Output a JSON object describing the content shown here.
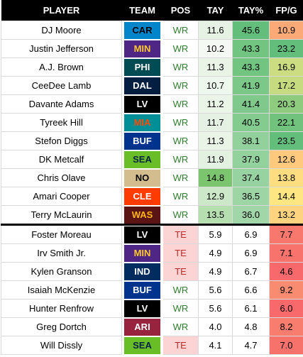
{
  "headers": [
    "PLAYER",
    "TEAM",
    "POS",
    "TAY",
    "TAY%",
    "FP/G"
  ],
  "colors": {
    "tay_ranks": [
      "#f7fbf6",
      "#d8ecd6",
      "#b6dfb0",
      "#98d28f",
      "#7cc56f"
    ],
    "tay_pct_top": "#63be7b",
    "fpg_high": "#63be7b",
    "fpg_mid": "#ffeb84",
    "fpg_low": "#f8696b"
  },
  "rows": [
    {
      "player": "DJ Moore",
      "team": "CAR",
      "team_bg": "#0085ca",
      "team_fg": "#000000",
      "pos": "WR",
      "tay": "11.6",
      "tay_bg": "#e6f3e4",
      "tay_pct": "45.6",
      "tay_pct_bg": "#63be7b",
      "fpg": "10.9",
      "fpg_bg": "#fbaa77"
    },
    {
      "player": "Justin Jefferson",
      "team": "MIN",
      "team_bg": "#4f2683",
      "team_fg": "#ffc62f",
      "pos": "WR",
      "tay": "10.2",
      "tay_bg": "#f4faf3",
      "tay_pct": "43.3",
      "tay_pct_bg": "#72c481",
      "fpg": "23.2",
      "fpg_bg": "#63be7b"
    },
    {
      "player": "A.J. Brown",
      "team": "PHI",
      "team_bg": "#004c54",
      "team_fg": "#ffffff",
      "pos": "WR",
      "tay": "11.3",
      "tay_bg": "#e9f4e7",
      "tay_pct": "43.3",
      "tay_pct_bg": "#72c481",
      "fpg": "16.9",
      "fpg_bg": "#cbdc81"
    },
    {
      "player": "CeeDee Lamb",
      "team": "DAL",
      "team_bg": "#041e42",
      "team_fg": "#ffffff",
      "pos": "WR",
      "tay": "10.7",
      "tay_bg": "#eef7ed",
      "tay_pct": "41.9",
      "tay_pct_bg": "#7bc888",
      "fpg": "17.2",
      "fpg_bg": "#c6db80"
    },
    {
      "player": "Davante Adams",
      "team": "LV",
      "team_bg": "#000000",
      "team_fg": "#ffffff",
      "pos": "WR",
      "tay": "11.2",
      "tay_bg": "#eaf5e8",
      "tay_pct": "41.4",
      "tay_pct_bg": "#7ec98b",
      "fpg": "20.3",
      "fpg_bg": "#8fcb7e"
    },
    {
      "player": "Tyreek Hill",
      "team": "MIA",
      "team_bg": "#008e97",
      "team_fg": "#fc4c02",
      "pos": "WR",
      "tay": "11.7",
      "tay_bg": "#e5f2e3",
      "tay_pct": "40.5",
      "tay_pct_bg": "#84cb90",
      "fpg": "22.1",
      "fpg_bg": "#70c27c"
    },
    {
      "player": "Stefon Diggs",
      "team": "BUF",
      "team_bg": "#00338d",
      "team_fg": "#ffffff",
      "pos": "WR",
      "tay": "11.3",
      "tay_bg": "#e9f4e7",
      "tay_pct": "38.1",
      "tay_pct_bg": "#93d19c",
      "fpg": "23.5",
      "fpg_bg": "#63be7b"
    },
    {
      "player": "DK Metcalf",
      "team": "SEA",
      "team_bg": "#69be28",
      "team_fg": "#002244",
      "pos": "WR",
      "tay": "11.9",
      "tay_bg": "#e3f1e1",
      "tay_pct": "37.9",
      "tay_pct_bg": "#94d29d",
      "fpg": "12.6",
      "fpg_bg": "#fec97d"
    },
    {
      "player": "Chris Olave",
      "team": "NO",
      "team_bg": "#d3bc8d",
      "team_fg": "#000000",
      "pos": "WR",
      "tay": "14.8",
      "tay_bg": "#7cc56f",
      "tay_pct": "37.4",
      "tay_pct_bg": "#97d3a0",
      "fpg": "13.8",
      "fpg_bg": "#fedd80"
    },
    {
      "player": "Amari Cooper",
      "team": "CLE",
      "team_bg": "#ff3c00",
      "team_fg": "#ffffff",
      "pos": "WR",
      "tay": "12.9",
      "tay_bg": "#cde8c9",
      "tay_pct": "36.5",
      "tay_pct_bg": "#9dd5a5",
      "fpg": "14.4",
      "fpg_bg": "#fee783"
    },
    {
      "player": "Terry McLaurin",
      "team": "WAS",
      "team_bg": "#5a1414",
      "team_fg": "#ffb612",
      "pos": "WR",
      "tay": "13.5",
      "tay_bg": "#b6dfb0",
      "tay_pct": "36.0",
      "tay_pct_bg": "#a0d6a8",
      "fpg": "13.2",
      "fpg_bg": "#fed37f"
    },
    {
      "player": "Foster Moreau",
      "team": "LV",
      "team_bg": "#000000",
      "team_fg": "#ffffff",
      "pos": "TE",
      "tay": "5.9",
      "tay_bg": "#ffffff",
      "tay_pct": "6.9",
      "tay_pct_bg": "#ffffff",
      "fpg": "7.7",
      "fpg_bg": "#f8786d"
    },
    {
      "player": "Irv Smith Jr.",
      "team": "MIN",
      "team_bg": "#4f2683",
      "team_fg": "#ffc62f",
      "pos": "TE",
      "tay": "4.9",
      "tay_bg": "#ffffff",
      "tay_pct": "6.9",
      "tay_pct_bg": "#ffffff",
      "fpg": "7.1",
      "fpg_bg": "#f8736c"
    },
    {
      "player": "Kylen Granson",
      "team": "IND",
      "team_bg": "#002c5f",
      "team_fg": "#ffffff",
      "pos": "TE",
      "tay": "4.9",
      "tay_bg": "#ffffff",
      "tay_pct": "6.7",
      "tay_pct_bg": "#ffffff",
      "fpg": "4.6",
      "fpg_bg": "#f8696b"
    },
    {
      "player": "Isaiah McKenzie",
      "team": "BUF",
      "team_bg": "#00338d",
      "team_fg": "#ffffff",
      "pos": "WR",
      "tay": "5.6",
      "tay_bg": "#ffffff",
      "tay_pct": "6.6",
      "tay_pct_bg": "#ffffff",
      "fpg": "9.2",
      "fpg_bg": "#f98b71"
    },
    {
      "player": "Hunter Renfrow",
      "team": "LV",
      "team_bg": "#000000",
      "team_fg": "#ffffff",
      "pos": "WR",
      "tay": "5.6",
      "tay_bg": "#ffffff",
      "tay_pct": "6.1",
      "tay_pct_bg": "#ffffff",
      "fpg": "6.0",
      "fpg_bg": "#f8696b"
    },
    {
      "player": "Greg Dortch",
      "team": "ARI",
      "team_bg": "#97233f",
      "team_fg": "#ffffff",
      "pos": "WR",
      "tay": "4.0",
      "tay_bg": "#ffffff",
      "tay_pct": "4.8",
      "tay_pct_bg": "#ffffff",
      "fpg": "8.2",
      "fpg_bg": "#f87d6e"
    },
    {
      "player": "Will Dissly",
      "team": "SEA",
      "team_bg": "#69be28",
      "team_fg": "#002244",
      "pos": "TE",
      "tay": "4.1",
      "tay_bg": "#ffffff",
      "tay_pct": "4.7",
      "tay_pct_bg": "#ffffff",
      "fpg": "7.0",
      "fpg_bg": "#f8726c"
    }
  ]
}
